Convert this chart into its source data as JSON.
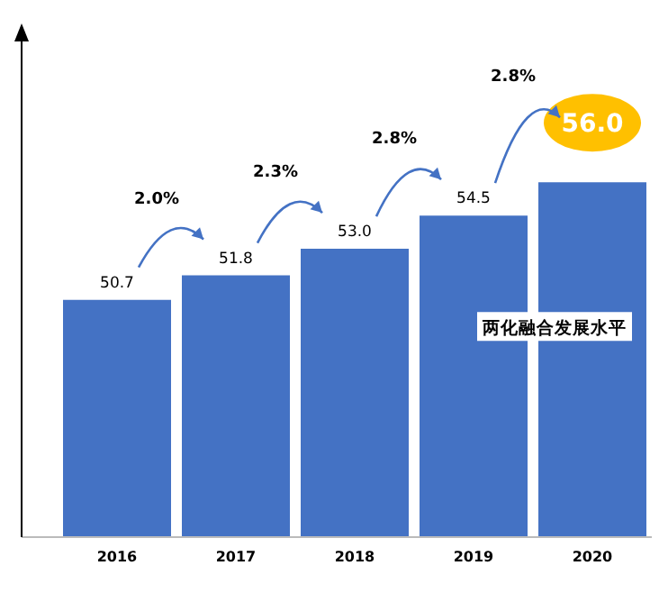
{
  "chart_data": {
    "type": "bar",
    "categories": [
      "2016",
      "2017",
      "2018",
      "2019",
      "2020"
    ],
    "series": [
      {
        "name": "两化融合发展水平",
        "color": "#4472c4",
        "values": [
          50.7,
          51.8,
          53.0,
          54.5,
          56.0
        ],
        "value_labels": [
          "50.7",
          "51.8",
          "53.0",
          "54.5",
          "56.0"
        ]
      }
    ],
    "ylim": [
      40,
      63
    ],
    "tick_labels": "x",
    "annotations": [
      "2.0%",
      "2.3%",
      "2.8%",
      "2.8%"
    ]
  }
}
